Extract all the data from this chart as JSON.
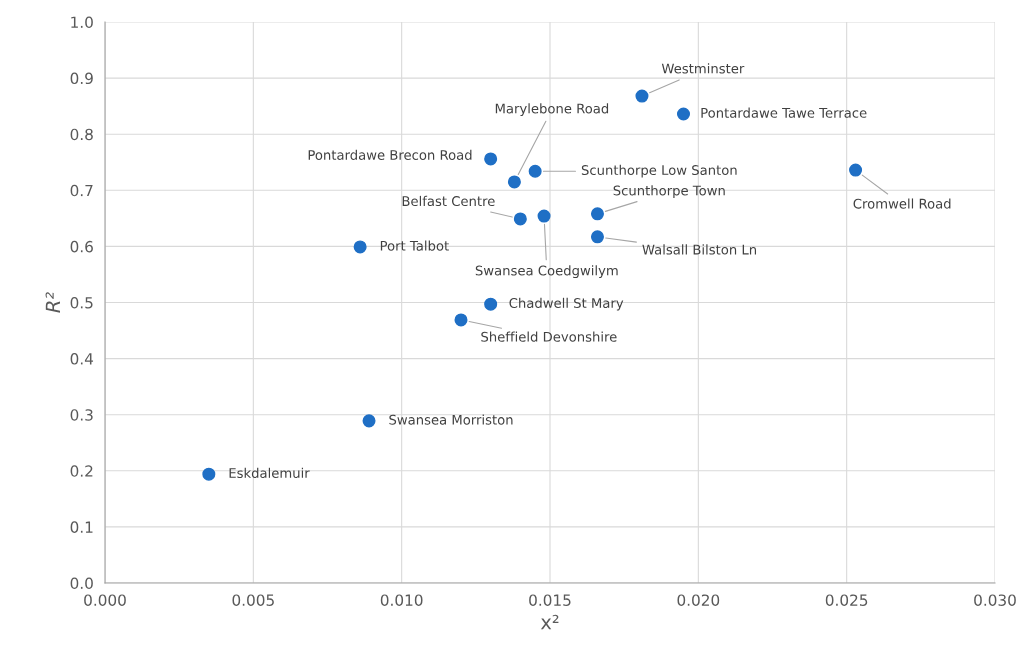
{
  "chart_data": {
    "type": "scatter",
    "xlabel": "x²",
    "ylabel": "R²",
    "grid": true,
    "marker": "circle",
    "legend": false,
    "xlim": [
      0,
      0.03
    ],
    "ylim": [
      0,
      1
    ],
    "xticks": [
      {
        "value": 0,
        "label": "0.000"
      },
      {
        "value": 0.005,
        "label": "0.005"
      },
      {
        "value": 0.01,
        "label": "0.010"
      },
      {
        "value": 0.015,
        "label": "0.015"
      },
      {
        "value": 0.02,
        "label": "0.020"
      },
      {
        "value": 0.025,
        "label": "0.025"
      },
      {
        "value": 0.03,
        "label": "0.030"
      }
    ],
    "yticks": [
      {
        "value": 0,
        "label": "0.0"
      },
      {
        "value": 0.1,
        "label": "0.1"
      },
      {
        "value": 0.2,
        "label": "0.2"
      },
      {
        "value": 0.3,
        "label": "0.3"
      },
      {
        "value": 0.4,
        "label": "0.4"
      },
      {
        "value": 0.5,
        "label": "0.5"
      },
      {
        "value": 0.6,
        "label": "0.6"
      },
      {
        "value": 0.7,
        "label": "0.7"
      },
      {
        "value": 0.8,
        "label": "0.8"
      },
      {
        "value": 0.9,
        "label": "0.9"
      },
      {
        "value": 1,
        "label": "1.0"
      }
    ],
    "series": [
      {
        "color": "#1f6fc5",
        "x": [
          0.0181,
          0.0195,
          0.0253,
          0.013,
          0.0138,
          0.0145,
          0.0166,
          0.014,
          0.0148,
          0.0166,
          0.0086,
          0.013,
          0.012,
          0.0089,
          0.0035
        ],
        "values": [
          0.868,
          0.836,
          0.736,
          0.756,
          0.715,
          0.734,
          0.658,
          0.649,
          0.654,
          0.617,
          0.599,
          0.497,
          0.469,
          0.289,
          0.194
        ]
      }
    ],
    "annotations": [
      {
        "text": "Westminster",
        "x": 0.0181,
        "y": 0.868
      },
      {
        "text": "Pontardawe Tawe Terrace",
        "x": 0.0195,
        "y": 0.836
      },
      {
        "text": "Cromwell Road",
        "x": 0.0253,
        "y": 0.736
      },
      {
        "text": "Pontardawe Brecon Road",
        "x": 0.013,
        "y": 0.756
      },
      {
        "text": "Marylebone Road",
        "x": 0.0138,
        "y": 0.715
      },
      {
        "text": "Scunthorpe Low Santon",
        "x": 0.0145,
        "y": 0.734
      },
      {
        "text": "Scunthorpe Town",
        "x": 0.0166,
        "y": 0.658
      },
      {
        "text": "Belfast Centre",
        "x": 0.014,
        "y": 0.649
      },
      {
        "text": "Swansea Coedgwilym",
        "x": 0.0148,
        "y": 0.654
      },
      {
        "text": "Walsall Bilston Ln",
        "x": 0.0166,
        "y": 0.617
      },
      {
        "text": "Port Talbot",
        "x": 0.0086,
        "y": 0.599
      },
      {
        "text": "Chadwell St Mary",
        "x": 0.013,
        "y": 0.497
      },
      {
        "text": "Sheffield Devonshire",
        "x": 0.012,
        "y": 0.469
      },
      {
        "text": "Swansea Morriston",
        "x": 0.0089,
        "y": 0.289
      },
      {
        "text": "Eskdalemuir",
        "x": 0.0035,
        "y": 0.194
      }
    ]
  }
}
